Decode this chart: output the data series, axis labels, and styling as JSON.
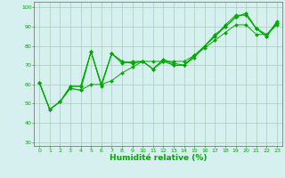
{
  "title": "",
  "xlabel": "Humidité relative (%)",
  "ylabel": "",
  "xlim": [
    -0.5,
    23.5
  ],
  "ylim": [
    28,
    103
  ],
  "yticks": [
    30,
    40,
    50,
    60,
    70,
    80,
    90,
    100
  ],
  "xticks": [
    0,
    1,
    2,
    3,
    4,
    5,
    6,
    7,
    8,
    9,
    10,
    11,
    12,
    13,
    14,
    15,
    16,
    17,
    18,
    19,
    20,
    21,
    22,
    23
  ],
  "background_color": "#d5f0ee",
  "grid_color": "#aaccbb",
  "line_color": "#00aa00",
  "series": [
    [
      61,
      47,
      51,
      59,
      59,
      77,
      59,
      76,
      72,
      71,
      72,
      68,
      73,
      71,
      70,
      75,
      80,
      86,
      90,
      95,
      97,
      89,
      85,
      93
    ],
    [
      61,
      47,
      51,
      59,
      59,
      77,
      60,
      76,
      71,
      72,
      72,
      68,
      73,
      70,
      70,
      75,
      80,
      85,
      91,
      96,
      96,
      89,
      86,
      92
    ],
    [
      61,
      47,
      51,
      58,
      57,
      77,
      60,
      76,
      72,
      71,
      72,
      68,
      72,
      70,
      70,
      74,
      80,
      85,
      90,
      95,
      97,
      89,
      85,
      92
    ],
    [
      61,
      47,
      51,
      58,
      57,
      60,
      60,
      62,
      66,
      69,
      72,
      72,
      72,
      72,
      72,
      75,
      79,
      83,
      87,
      91,
      91,
      86,
      86,
      91
    ]
  ]
}
